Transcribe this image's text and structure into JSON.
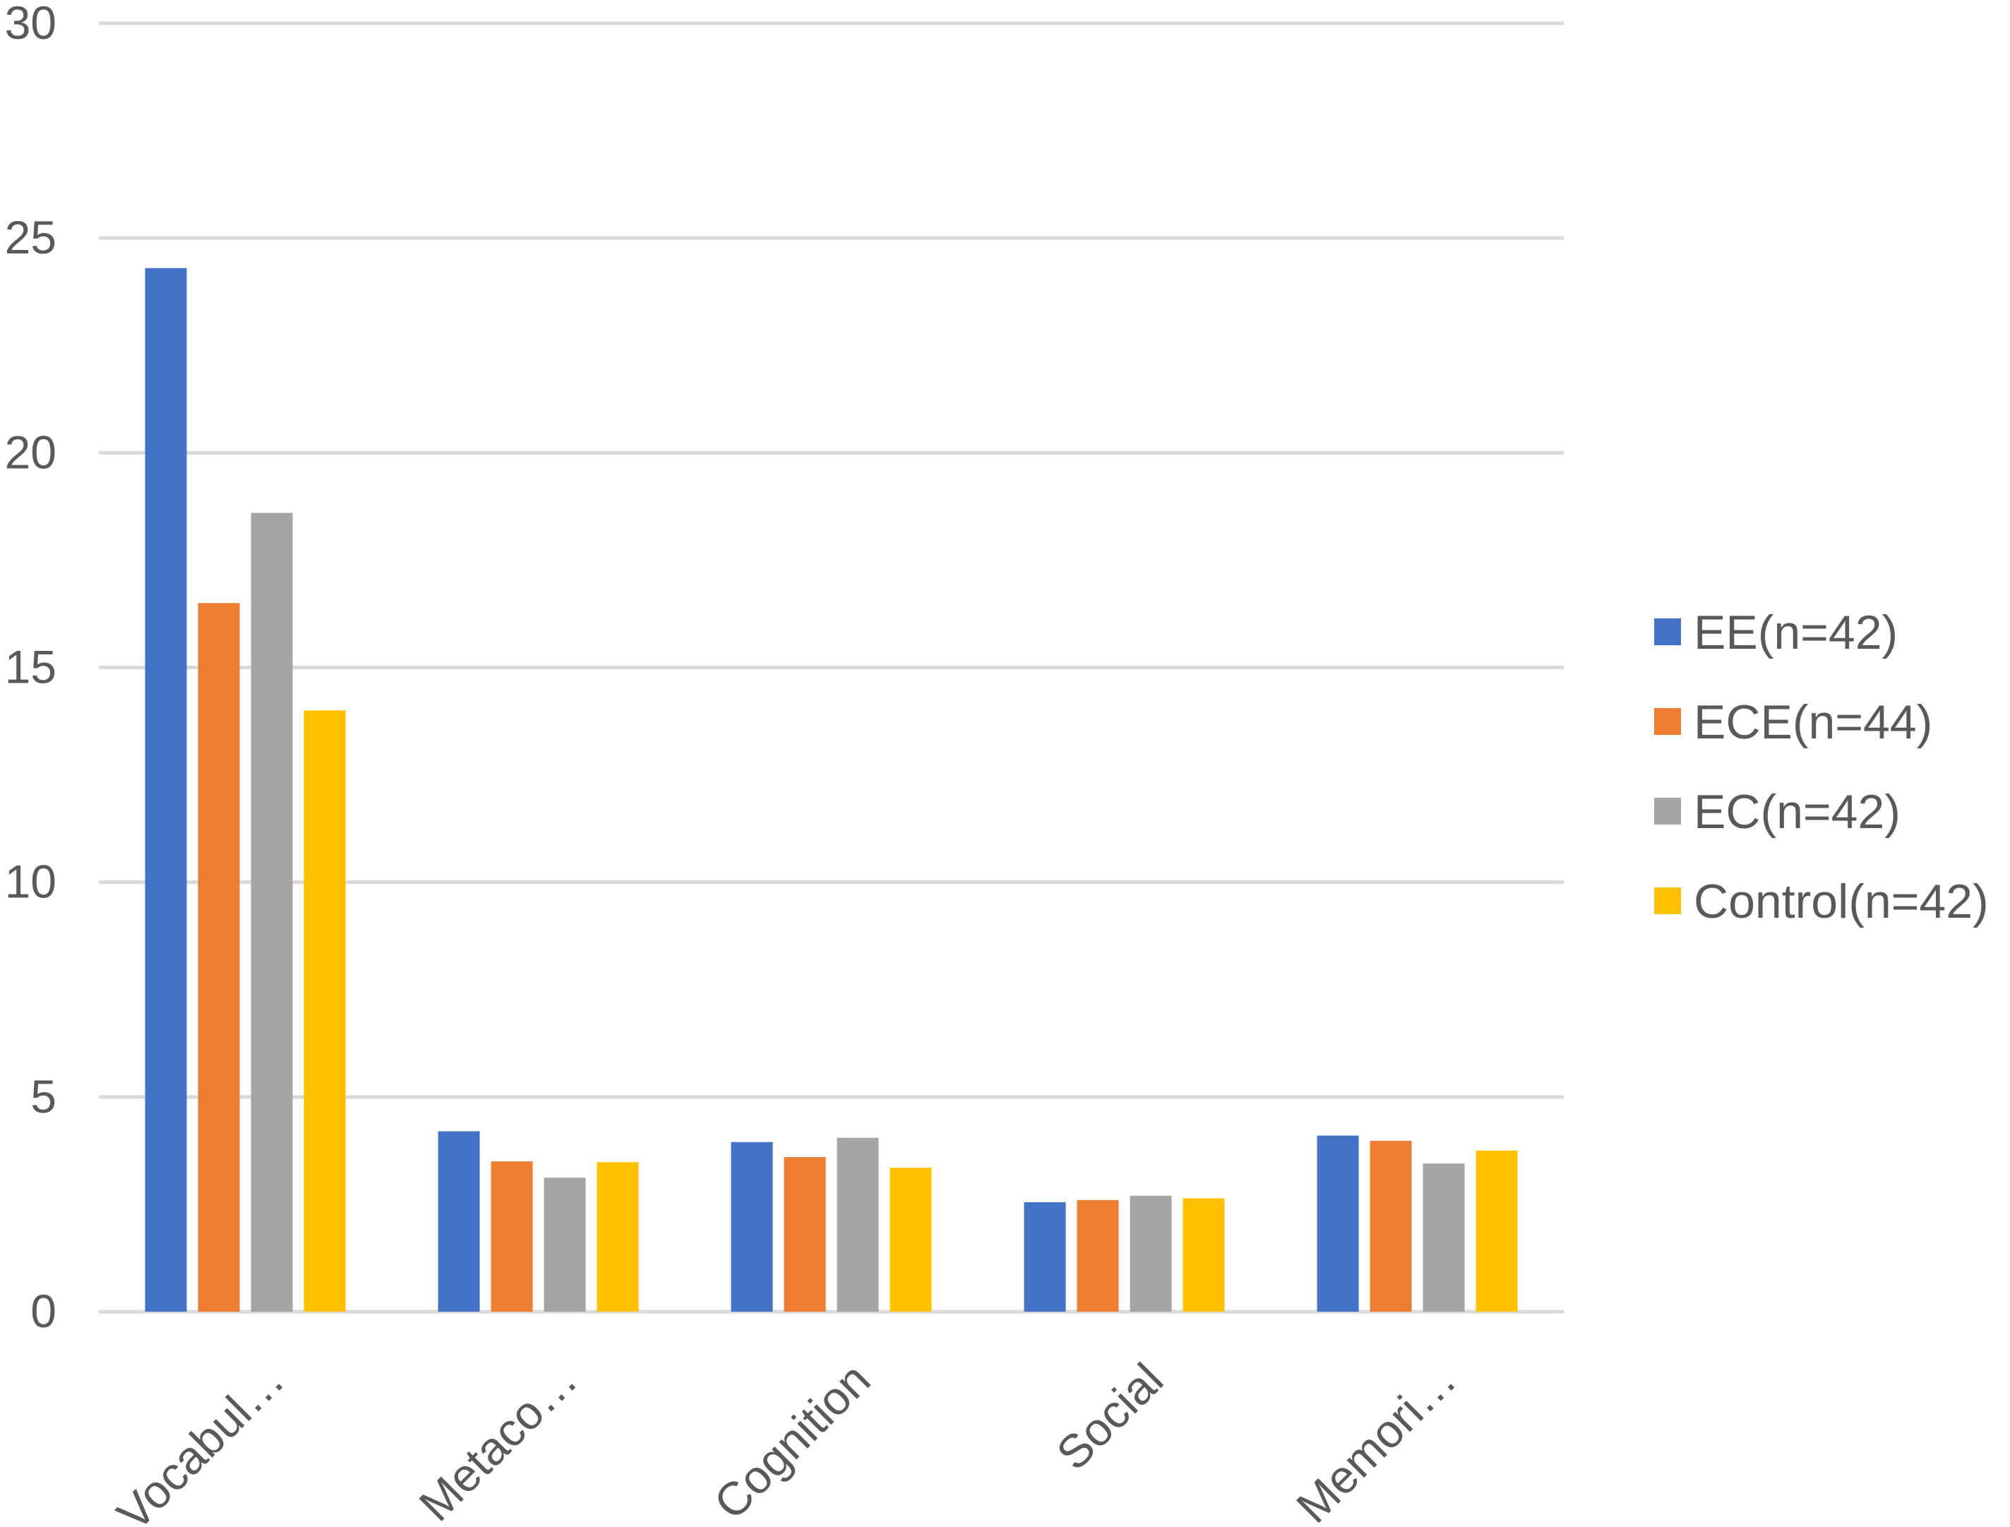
{
  "colors": {
    "background": "#ffffff",
    "gridline": "#d9d9d9",
    "axis_text": "#595959",
    "EE": "#4472c4",
    "ECE": "#ed7d31",
    "EC": "#a5a5a5",
    "Control": "#ffc000"
  },
  "chart_data": {
    "type": "bar",
    "title": "",
    "xlabel": "",
    "ylabel": "",
    "ylim": [
      0,
      30
    ],
    "yticks": [
      0,
      5,
      10,
      15,
      20,
      25,
      30
    ],
    "grid": true,
    "legend_position": "right",
    "categories": [
      "Vocabul…",
      "Metaco…",
      "Cognition",
      "Social",
      "Memori…"
    ],
    "series": [
      {
        "name": "EE(n=42)",
        "color_key": "EE",
        "values": [
          24.3,
          4.2,
          3.95,
          2.55,
          4.1
        ]
      },
      {
        "name": "ECE(n=44)",
        "color_key": "ECE",
        "values": [
          16.5,
          3.5,
          3.6,
          2.6,
          3.98
        ]
      },
      {
        "name": "EC(n=42)",
        "color_key": "EC",
        "values": [
          18.6,
          3.12,
          4.05,
          2.7,
          3.45
        ]
      },
      {
        "name": "Control(n=42)",
        "color_key": "Control",
        "values": [
          14.0,
          3.48,
          3.35,
          2.64,
          3.75
        ]
      }
    ]
  }
}
